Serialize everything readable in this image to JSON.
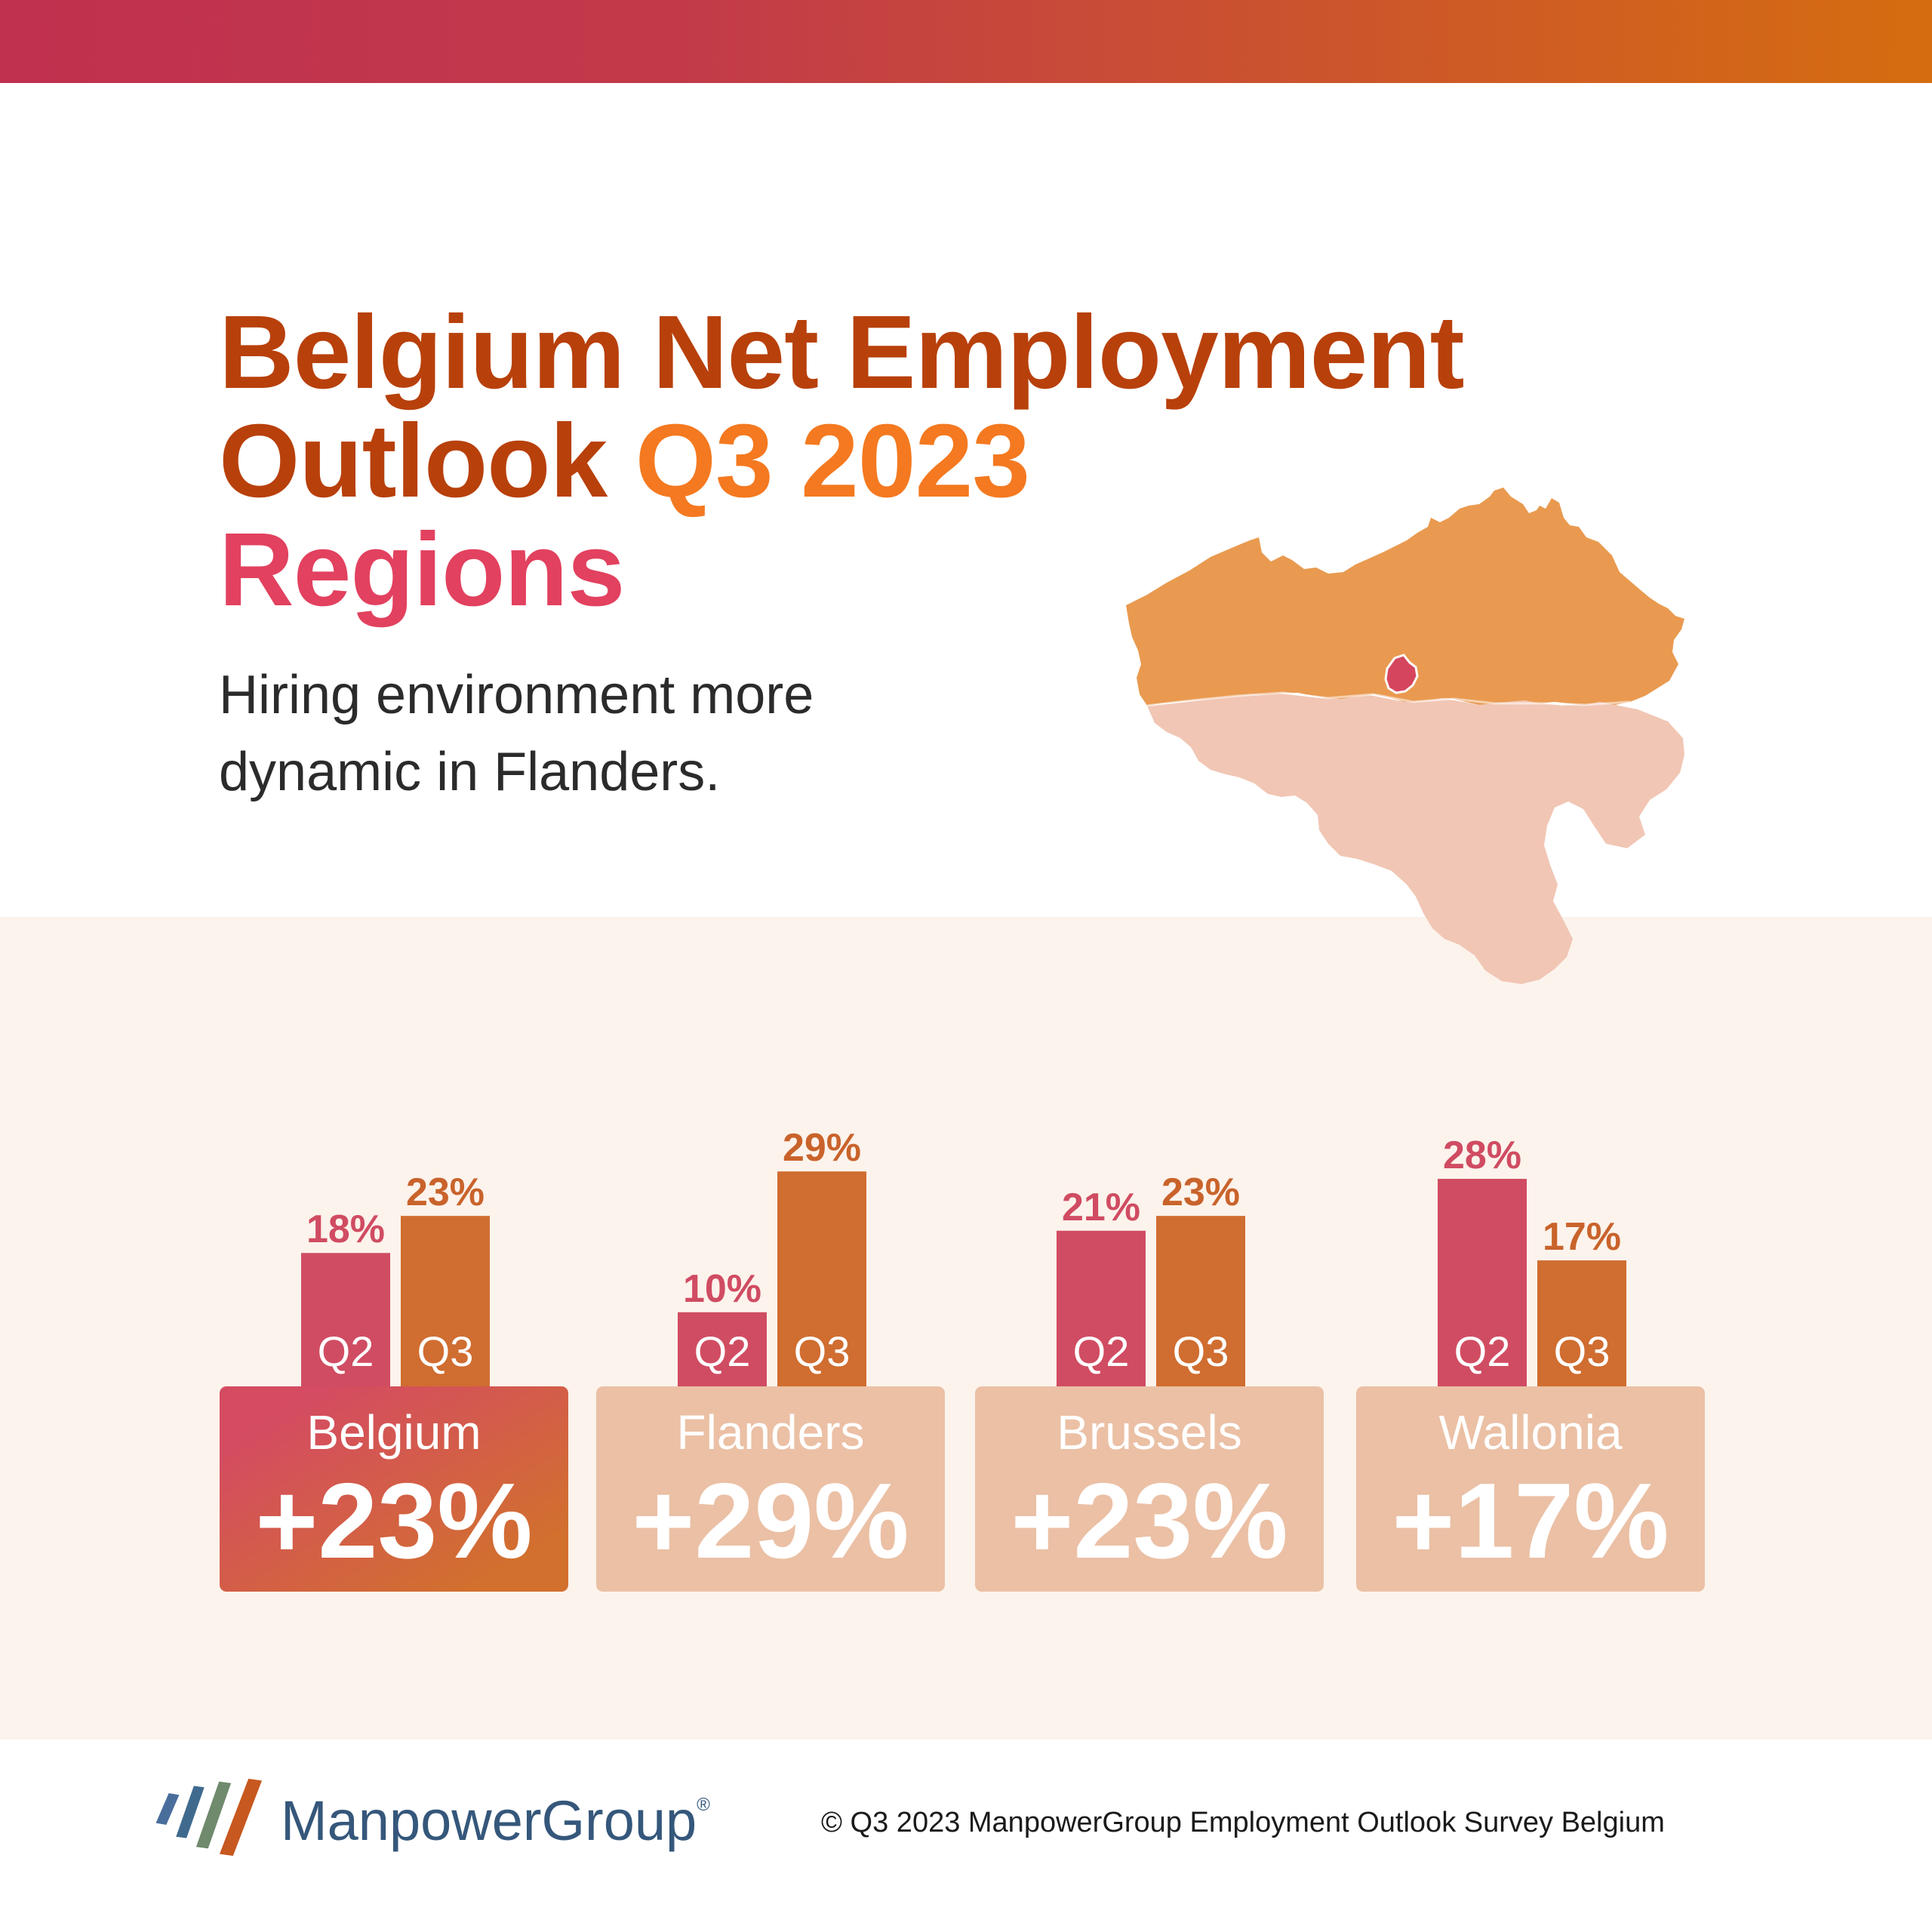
{
  "header": {
    "title_line1": "Belgium Net Employment",
    "title_line2_a": "Outlook ",
    "title_line2_b": "Q3 2023",
    "title_line3": "Regions",
    "subtitle_line1": "Hiring environment more",
    "subtitle_line2": "dynamic in Flanders."
  },
  "colors": {
    "q2": "#d04c62",
    "q3": "#d06d30",
    "label_q2": "#d04c62",
    "label_q3": "#c9632b",
    "box_highlight_start": "#d44b62",
    "box_highlight_end": "#d2702e",
    "box_regular": "#ebc0a5",
    "flanders_map": "#e99a50",
    "wallonia_map": "#f1c6b4",
    "brussels_map": "#d5465e"
  },
  "chart_data": {
    "type": "bar",
    "categories": [
      "Belgium",
      "Flanders",
      "Brussels",
      "Wallonia"
    ],
    "series": [
      {
        "name": "Q2",
        "values": [
          18,
          10,
          21,
          28
        ],
        "labels": [
          "18%",
          "10%",
          "21%",
          "28%"
        ]
      },
      {
        "name": "Q3",
        "values": [
          23,
          29,
          23,
          17
        ],
        "labels": [
          "23%",
          "29%",
          "23%",
          "17%"
        ]
      }
    ],
    "summary": [
      "+23%",
      "+29%",
      "+23%",
      "+17%"
    ],
    "highlight": "Belgium",
    "grid": false,
    "legend": "none"
  },
  "footer": {
    "brand": "ManpowerGroup",
    "brand_mark": "®",
    "copyright": "© Q3 2023 ManpowerGroup Employment Outlook Survey Belgium"
  }
}
